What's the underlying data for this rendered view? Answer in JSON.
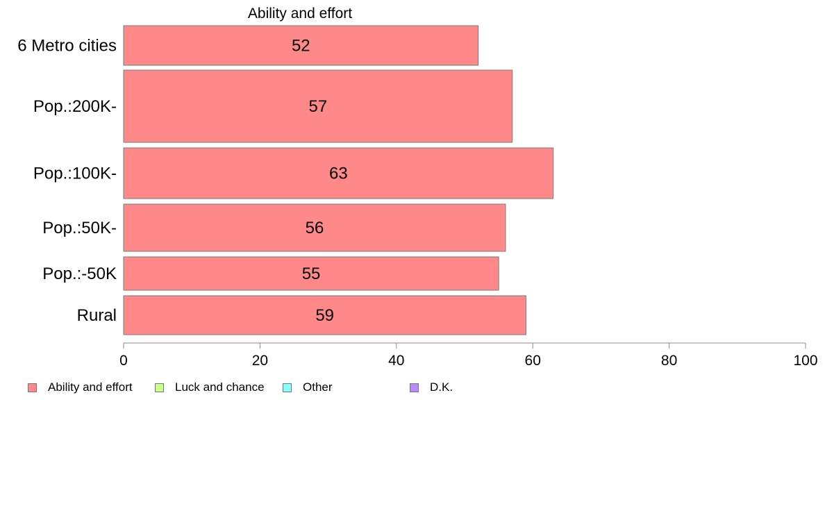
{
  "chart_data": {
    "type": "bar",
    "orientation": "horizontal",
    "title": "Ability and effort",
    "categories": [
      "6 Metro cities",
      "Pop.:200K-",
      "Pop.:100K-",
      "Pop.:50K-",
      "Pop.:-50K",
      "Rural"
    ],
    "series": [
      {
        "name": "Ability and effort",
        "values": [
          52,
          57,
          63,
          56,
          55,
          59
        ]
      }
    ],
    "data_labels": [
      "52",
      "57",
      "63",
      "56",
      "55",
      "59"
    ],
    "xlim": [
      0,
      100
    ],
    "xticks": [
      "0",
      "20",
      "40",
      "60",
      "80",
      "100"
    ],
    "grid": false,
    "legend_position": "bottom-left",
    "colors": {
      "bar": "#ff8888",
      "bar_stroke": "#7a7a7a",
      "axis": "#888888"
    }
  },
  "legend": [
    {
      "label": "Ability and effort",
      "color": "#ff8888"
    },
    {
      "label": "Luck and chance",
      "color": "#ccff88"
    },
    {
      "label": "Other",
      "color": "#88ffff"
    },
    {
      "label": "D.K.",
      "color": "#bb88ff"
    }
  ]
}
